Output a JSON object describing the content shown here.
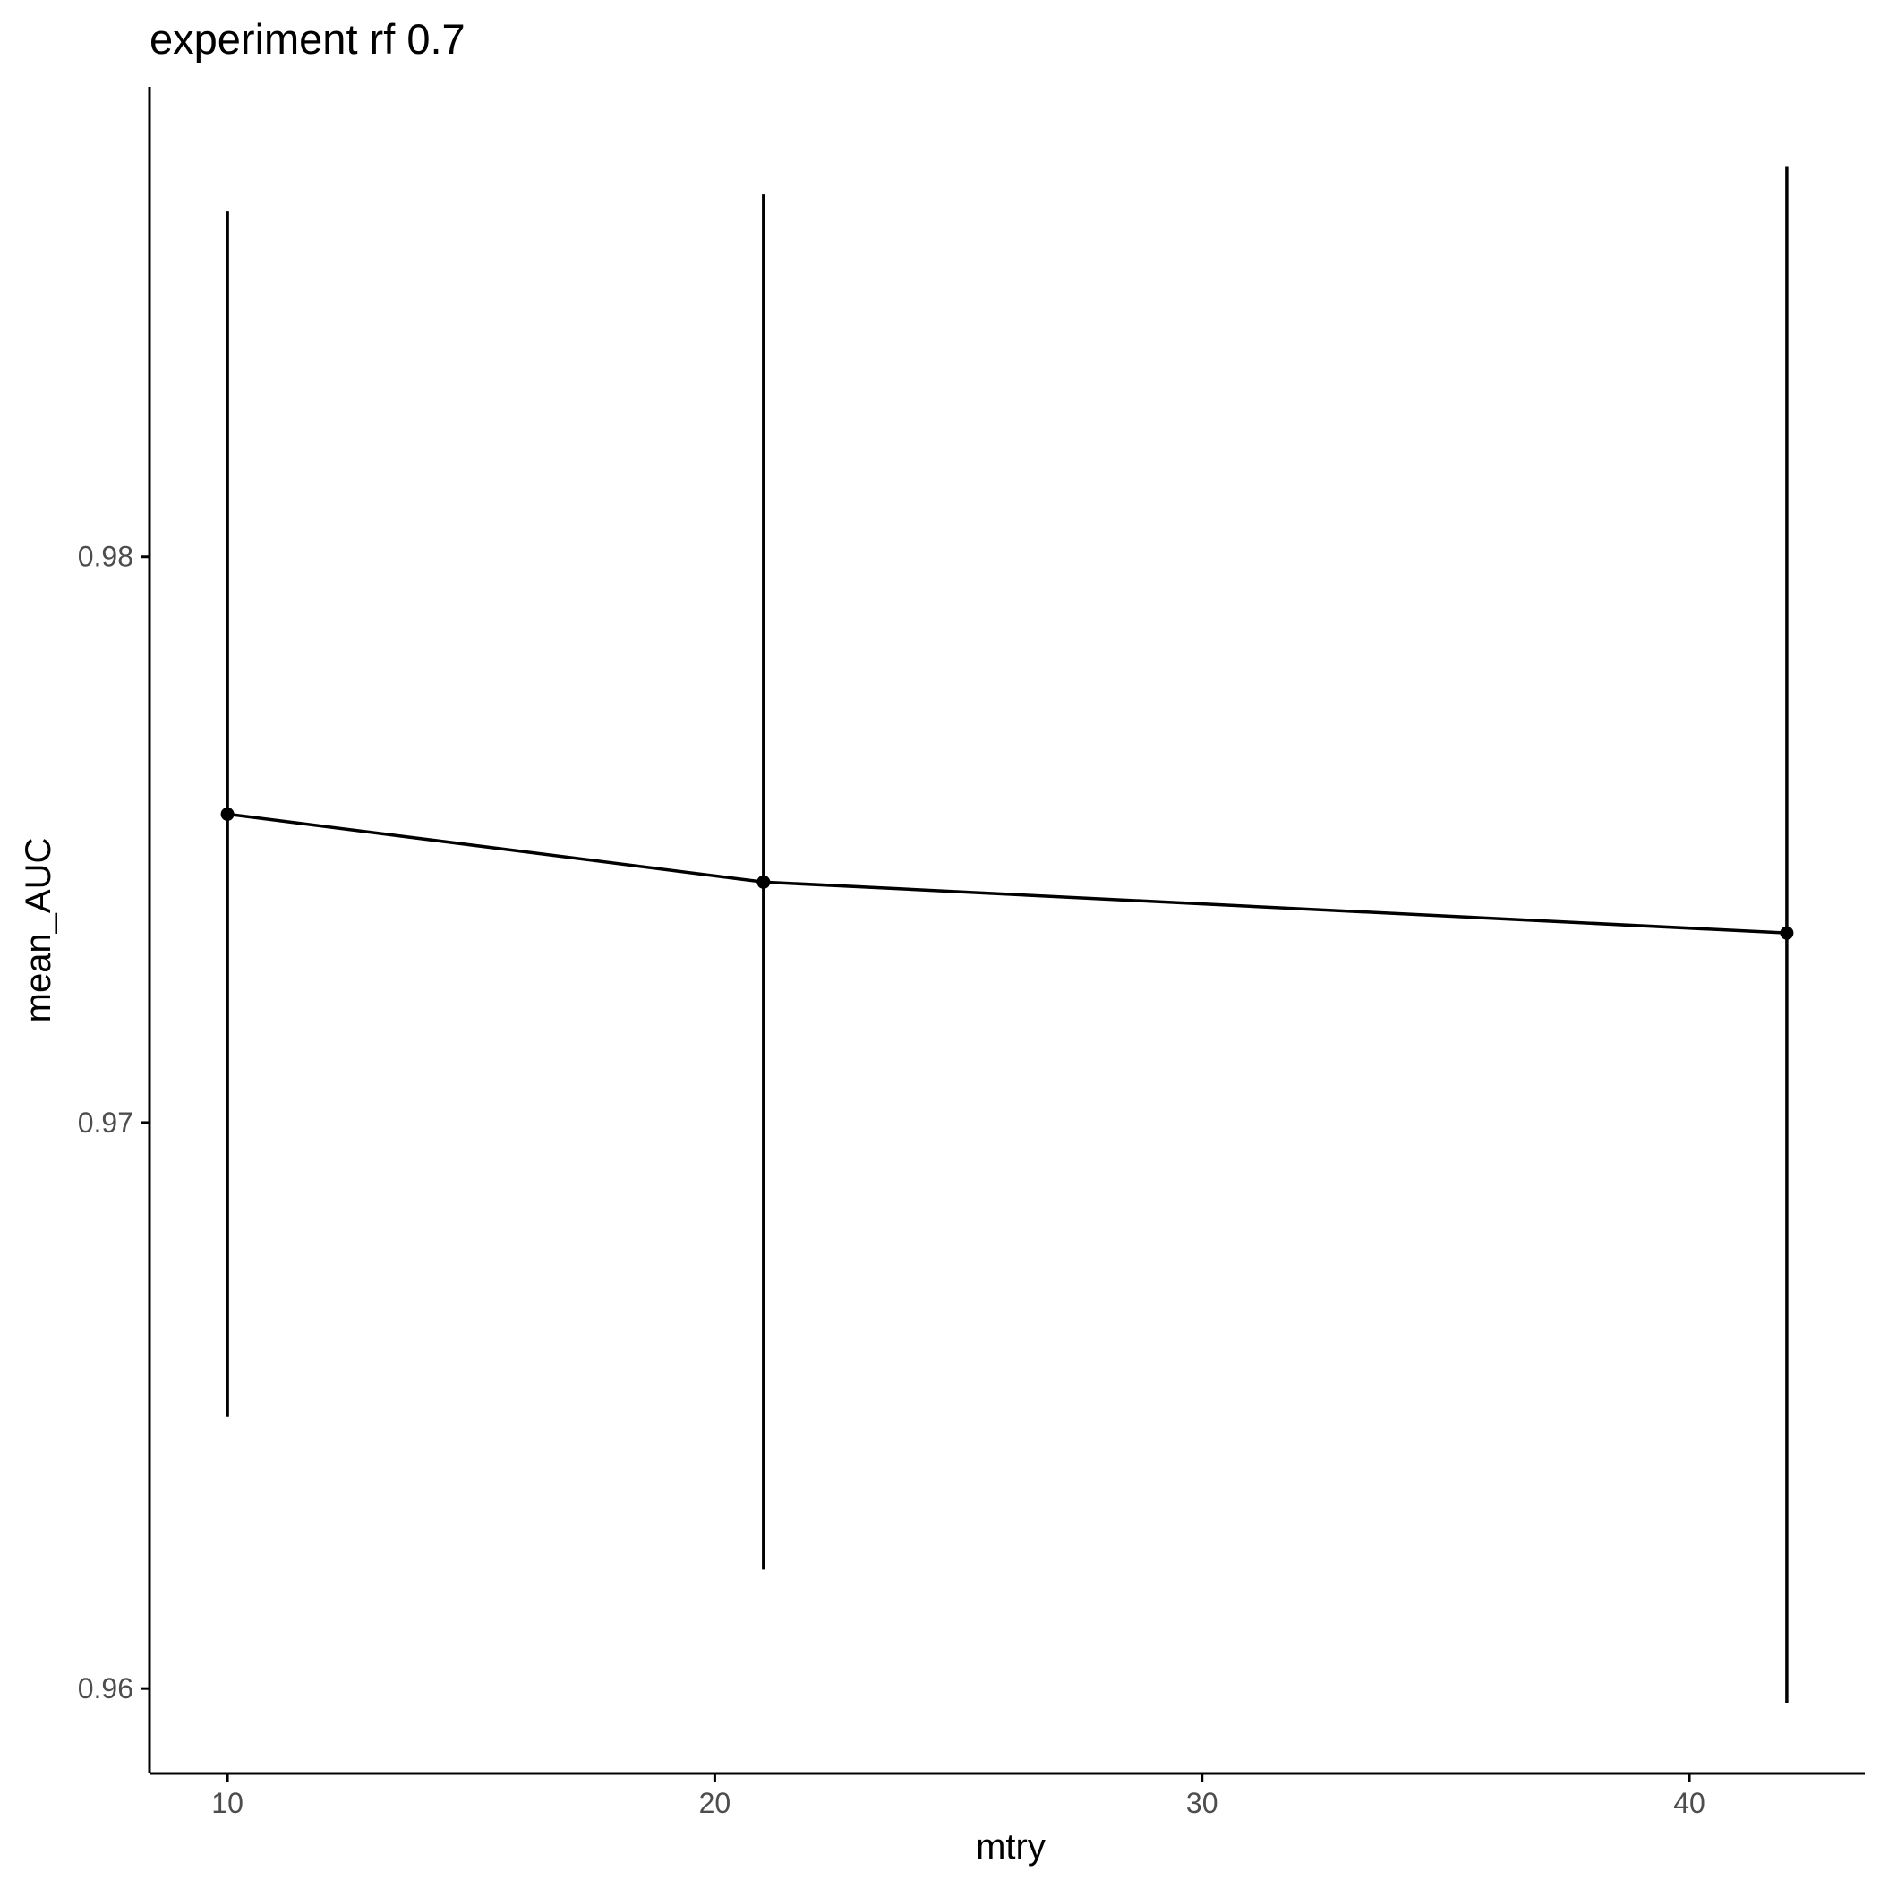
{
  "chart_data": {
    "type": "line",
    "title": "experiment rf 0.7",
    "xlabel": "mtry",
    "ylabel": "mean_AUC",
    "xlim": [
      8.4,
      43.6
    ],
    "ylim": [
      0.9585,
      0.9883
    ],
    "x_ticks": [
      10,
      20,
      30,
      40
    ],
    "x_tick_labels": [
      "10",
      "20",
      "30",
      "40"
    ],
    "y_ticks": [
      0.96,
      0.97,
      0.98
    ],
    "y_tick_labels": [
      "0.96",
      "0.97",
      "0.98"
    ],
    "grid": false,
    "legend": "none",
    "series": [
      {
        "points": [
          {
            "x": 10,
            "y": 0.97545,
            "ymin": 0.9648,
            "ymax": 0.9861
          },
          {
            "x": 21,
            "y": 0.97425,
            "ymin": 0.9621,
            "ymax": 0.9864
          },
          {
            "x": 42,
            "y": 0.97335,
            "ymin": 0.95975,
            "ymax": 0.9869
          }
        ]
      }
    ],
    "colors": {
      "line": "#000000",
      "point": "#000000",
      "axis": "#000000",
      "tick_text": "#4d4d4d"
    }
  }
}
